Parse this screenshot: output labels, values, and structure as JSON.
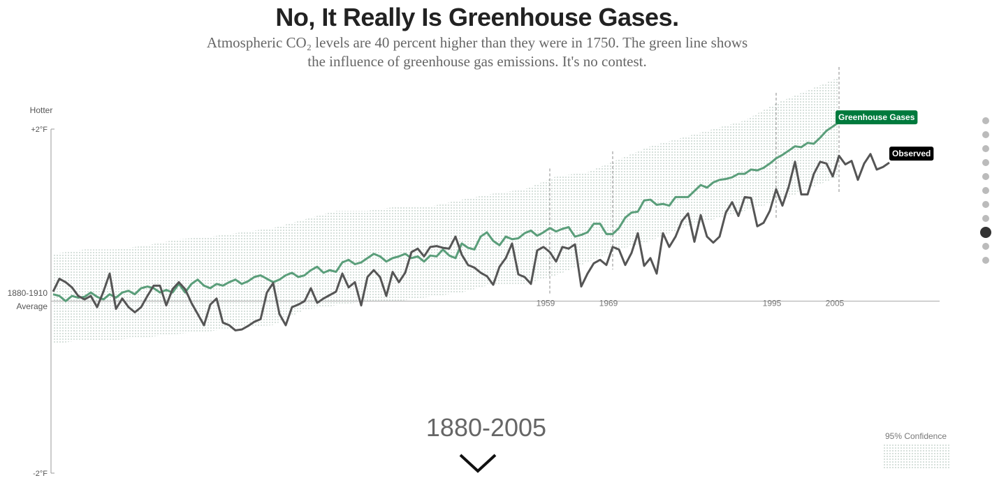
{
  "chart_data": {
    "type": "line",
    "title": "No, It Really Is Greenhouse Gases.",
    "subtitle": "Atmospheric CO₂ levels are 40 percent higher than they were in 1750. The green line shows the influence of greenhouse gas emissions. It's no contest.",
    "y_axis_label": "Hotter",
    "period": "1880-2005",
    "legend_label": "95% Confidence",
    "xlim": [
      1880,
      2021
    ],
    "ylim": [
      -2,
      2
    ],
    "yticks": [
      {
        "value": 2,
        "label": "+2°F"
      },
      {
        "value": 0,
        "label": "1880-1910 Average"
      },
      {
        "value": -2,
        "label": "-2°F"
      }
    ],
    "markers": [
      1959,
      1969,
      1995,
      2005
    ],
    "x": [
      1880,
      1881,
      1882,
      1883,
      1884,
      1885,
      1886,
      1887,
      1888,
      1889,
      1890,
      1891,
      1892,
      1893,
      1894,
      1895,
      1896,
      1897,
      1898,
      1899,
      1900,
      1901,
      1902,
      1903,
      1904,
      1905,
      1906,
      1907,
      1908,
      1909,
      1910,
      1911,
      1912,
      1913,
      1914,
      1915,
      1916,
      1917,
      1918,
      1919,
      1920,
      1921,
      1922,
      1923,
      1924,
      1925,
      1926,
      1927,
      1928,
      1929,
      1930,
      1931,
      1932,
      1933,
      1934,
      1935,
      1936,
      1937,
      1938,
      1939,
      1940,
      1941,
      1942,
      1943,
      1944,
      1945,
      1946,
      1947,
      1948,
      1949,
      1950,
      1951,
      1952,
      1953,
      1954,
      1955,
      1956,
      1957,
      1958,
      1959,
      1960,
      1961,
      1962,
      1963,
      1964,
      1965,
      1966,
      1967,
      1968,
      1969,
      1970,
      1971,
      1972,
      1973,
      1974,
      1975,
      1976,
      1977,
      1978,
      1979,
      1980,
      1981,
      1982,
      1983,
      1984,
      1985,
      1986,
      1987,
      1988,
      1989,
      1990,
      1991,
      1992,
      1993,
      1994,
      1995,
      1996,
      1997,
      1998,
      1999,
      2000,
      2001,
      2002,
      2003,
      2004,
      2005,
      2006,
      2007,
      2008,
      2009,
      2010,
      2011,
      2012,
      2013
    ],
    "series": [
      {
        "name": "Greenhouse Gases",
        "color": "#5a9e7a",
        "label_color": "#007a3d",
        "values": [
          0.08,
          0.06,
          0.0,
          0.06,
          0.04,
          0.05,
          0.1,
          0.05,
          0.02,
          0.08,
          0.04,
          0.1,
          0.12,
          0.08,
          0.15,
          0.17,
          0.15,
          0.1,
          0.13,
          0.1,
          0.2,
          0.1,
          0.2,
          0.25,
          0.18,
          0.15,
          0.2,
          0.18,
          0.22,
          0.25,
          0.2,
          0.23,
          0.28,
          0.3,
          0.26,
          0.22,
          0.25,
          0.3,
          0.33,
          0.28,
          0.3,
          0.36,
          0.4,
          0.33,
          0.36,
          0.34,
          0.45,
          0.48,
          0.43,
          0.45,
          0.5,
          0.55,
          0.52,
          0.46,
          0.5,
          0.52,
          0.55,
          0.5,
          0.52,
          0.46,
          0.53,
          0.52,
          0.6,
          0.53,
          0.5,
          0.67,
          0.62,
          0.6,
          0.75,
          0.8,
          0.7,
          0.65,
          0.75,
          0.72,
          0.73,
          0.79,
          0.82,
          0.76,
          0.8,
          0.85,
          0.81,
          0.84,
          0.86,
          0.75,
          0.77,
          0.8,
          0.9,
          0.9,
          0.78,
          0.78,
          0.85,
          0.97,
          1.03,
          1.04,
          1.17,
          1.18,
          1.12,
          1.13,
          1.11,
          1.21,
          1.21,
          1.21,
          1.28,
          1.35,
          1.32,
          1.38,
          1.41,
          1.42,
          1.44,
          1.48,
          1.48,
          1.53,
          1.52,
          1.55,
          1.6,
          1.66,
          1.7,
          1.75,
          1.8,
          1.79,
          1.84,
          1.83,
          1.9,
          1.98,
          2.03,
          2.08,
          null,
          null,
          null,
          null,
          null,
          null,
          null,
          null
        ]
      },
      {
        "name": "Observed",
        "color": "#555555",
        "label_color": "#000000",
        "values": [
          0.11,
          0.26,
          0.22,
          0.16,
          0.06,
          0.02,
          0.06,
          -0.07,
          0.11,
          0.32,
          -0.09,
          0.03,
          -0.07,
          -0.13,
          -0.07,
          0.06,
          0.18,
          0.18,
          -0.05,
          0.14,
          0.22,
          0.14,
          -0.02,
          -0.15,
          -0.28,
          -0.04,
          0.03,
          -0.25,
          -0.28,
          -0.34,
          -0.33,
          -0.29,
          -0.24,
          -0.21,
          0.1,
          0.21,
          -0.15,
          -0.28,
          -0.07,
          -0.04,
          0.0,
          0.15,
          -0.02,
          0.03,
          0.07,
          0.11,
          0.32,
          0.16,
          0.22,
          -0.05,
          0.28,
          0.36,
          0.28,
          0.06,
          0.34,
          0.22,
          0.33,
          0.57,
          0.61,
          0.52,
          0.63,
          0.64,
          0.62,
          0.61,
          0.75,
          0.54,
          0.42,
          0.39,
          0.33,
          0.29,
          0.19,
          0.4,
          0.5,
          0.67,
          0.31,
          0.28,
          0.2,
          0.59,
          0.63,
          0.57,
          0.46,
          0.63,
          0.61,
          0.66,
          0.17,
          0.32,
          0.44,
          0.48,
          0.42,
          0.63,
          0.6,
          0.42,
          0.56,
          0.79,
          0.41,
          0.5,
          0.32,
          0.79,
          0.63,
          0.75,
          0.93,
          1.02,
          0.69,
          1.0,
          0.75,
          0.68,
          0.75,
          1.03,
          1.15,
          0.99,
          1.21,
          1.2,
          0.87,
          0.91,
          1.05,
          1.3,
          1.11,
          1.33,
          1.62,
          1.24,
          1.24,
          1.48,
          1.62,
          1.6,
          1.45,
          1.69,
          1.59,
          1.63,
          1.41,
          1.6,
          1.71,
          1.53,
          1.56,
          1.61
        ]
      }
    ],
    "band": {
      "x": [
        1880,
        1885,
        1890,
        1895,
        1900,
        1905,
        1910,
        1915,
        1920,
        1925,
        1930,
        1935,
        1940,
        1945,
        1950,
        1955,
        1960,
        1965,
        1970,
        1975,
        1980,
        1985,
        1990,
        1995,
        2000,
        2005
      ],
      "upper": [
        0.55,
        0.6,
        0.6,
        0.65,
        0.72,
        0.75,
        0.8,
        0.85,
        0.95,
        1.05,
        1.05,
        1.1,
        1.1,
        1.18,
        1.25,
        1.3,
        1.45,
        1.5,
        1.65,
        1.8,
        1.9,
        2.0,
        2.1,
        2.3,
        2.45,
        2.6
      ],
      "lower": [
        -0.5,
        -0.45,
        -0.45,
        -0.42,
        -0.38,
        -0.35,
        -0.3,
        -0.28,
        -0.1,
        -0.05,
        0.0,
        0.0,
        0.05,
        0.1,
        0.2,
        0.2,
        0.3,
        0.45,
        0.6,
        0.7,
        0.85,
        0.95,
        1.05,
        1.15,
        1.3,
        1.45
      ],
      "color": "#b9c9c1"
    }
  }
}
